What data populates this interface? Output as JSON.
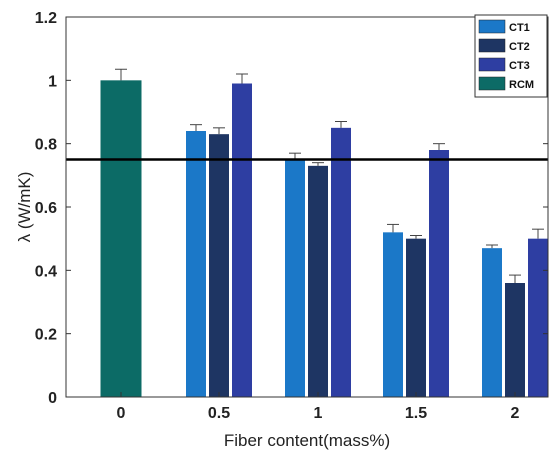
{
  "chart_data": {
    "type": "bar",
    "title": "",
    "xlabel": "Fiber content(mass%)",
    "ylabel": "λ (W/mK)",
    "ylim": [
      0,
      1.2
    ],
    "yticks": [
      "0",
      "0.2",
      "0.4",
      "0.6",
      "0.8",
      "1",
      "1.2"
    ],
    "categories": [
      "0",
      "0.5",
      "1",
      "1.5",
      "2"
    ],
    "series": [
      {
        "name": "CT1",
        "color": "#1b78c8",
        "values": [
          null,
          0.84,
          0.75,
          0.52,
          0.47
        ],
        "errors": [
          null,
          0.02,
          0.02,
          0.025,
          0.01
        ]
      },
      {
        "name": "CT2",
        "color": "#1e3563",
        "values": [
          null,
          0.83,
          0.73,
          0.5,
          0.36
        ],
        "errors": [
          null,
          0.02,
          0.01,
          0.01,
          0.025
        ]
      },
      {
        "name": "CT3",
        "color": "#2e3ea2",
        "values": [
          null,
          0.99,
          0.85,
          0.78,
          0.5
        ],
        "errors": [
          null,
          0.03,
          0.02,
          0.02,
          0.03
        ]
      },
      {
        "name": "RCM",
        "color": "#0c6b66",
        "values": [
          1.0,
          null,
          null,
          null,
          null
        ],
        "errors": [
          0.035,
          null,
          null,
          null,
          null
        ]
      }
    ],
    "reference_line": {
      "y": 0.75,
      "color": "#000000"
    },
    "grid": false,
    "legend_position": "top-right"
  }
}
